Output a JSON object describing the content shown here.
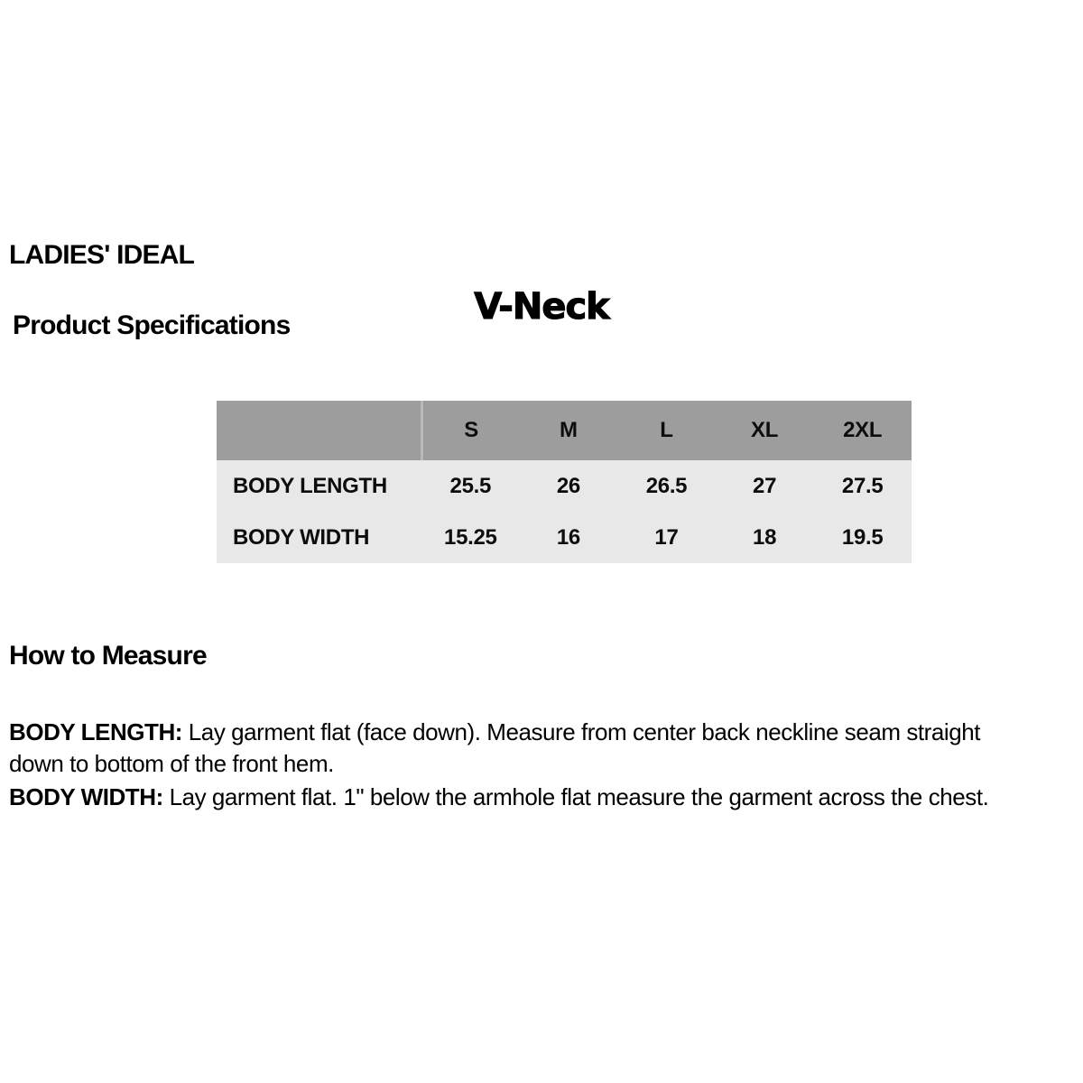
{
  "header": {
    "brand": "LADIES' IDEAL",
    "section_title": "Product Specifications",
    "product_name": "V-Neck"
  },
  "spec_table": {
    "corner_label": "",
    "columns": [
      "S",
      "M",
      "L",
      "XL",
      "2XL"
    ],
    "rows": [
      {
        "label": "BODY LENGTH",
        "values": [
          "25.5",
          "26",
          "26.5",
          "27",
          "27.5"
        ]
      },
      {
        "label": "BODY WIDTH",
        "values": [
          "15.25",
          "16",
          "17",
          "18",
          "19.5"
        ]
      }
    ]
  },
  "how_to_measure": {
    "heading": "How to Measure",
    "instructions": [
      {
        "label": "BODY LENGTH:",
        "lines": [
          "Lay garment flat (face down). Measure from center back neckline seam straight",
          "down to bottom of the front hem."
        ]
      },
      {
        "label": "BODY WIDTH:",
        "lines": [
          "Lay garment flat. 1\" below the armhole flat measure the garment across the chest."
        ]
      }
    ]
  },
  "colors": {
    "background": "#ffffff",
    "text": "#000000",
    "table_header_bg": "#9d9d9d",
    "table_row_bg": "#e8e8e8",
    "table_divider": "#b9b9b9"
  }
}
